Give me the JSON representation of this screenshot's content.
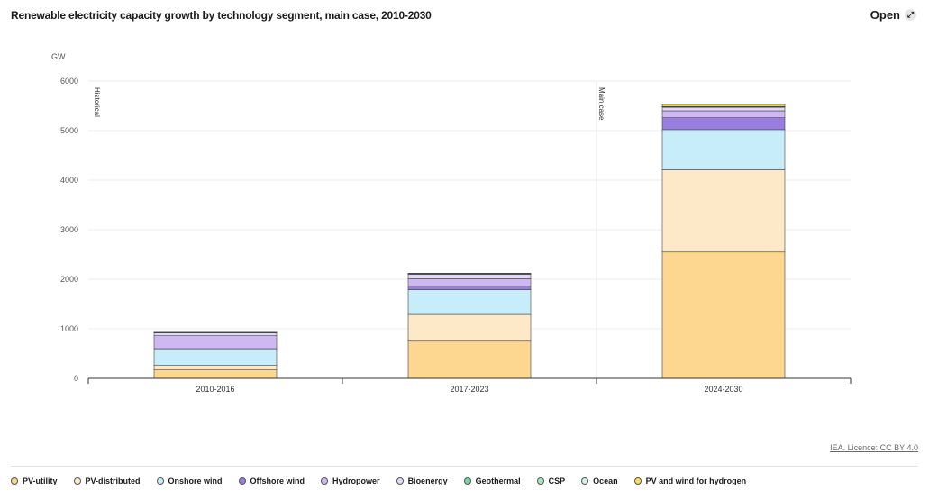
{
  "header": {
    "title": "Renewable electricity capacity growth by technology segment, main case, 2010-2030",
    "open_label": "Open",
    "open_icon": "expand-arrow-icon"
  },
  "source": {
    "label": "IEA. Licence: CC BY 4.0"
  },
  "chart_data": {
    "type": "bar",
    "stacked": true,
    "title": "Renewable electricity capacity growth by technology segment, main case, 2010-2030",
    "ylabel": "GW",
    "xlabel": "",
    "ylim": [
      0,
      6000
    ],
    "yticks": [
      0,
      1000,
      2000,
      3000,
      4000,
      5000,
      6000
    ],
    "categories": [
      "2010-2016",
      "2017-2023",
      "2024-2030"
    ],
    "grid": true,
    "legend_position": "bottom",
    "period_annotations": [
      "Historical",
      "Main case"
    ],
    "series": [
      {
        "name": "PV-utility",
        "color": "#fdd68f",
        "values": [
          170,
          750,
          2550
        ]
      },
      {
        "name": "PV-distributed",
        "color": "#fde8c8",
        "values": [
          90,
          540,
          1660
        ]
      },
      {
        "name": "Onshore wind",
        "color": "#c7ecfa",
        "values": [
          320,
          500,
          810
        ]
      },
      {
        "name": "Offshore wind",
        "color": "#9b7de2",
        "values": [
          20,
          70,
          240
        ]
      },
      {
        "name": "Hydropower",
        "color": "#cdb8f2",
        "values": [
          260,
          150,
          140
        ]
      },
      {
        "name": "Bioenergy",
        "color": "#e0d8f8",
        "values": [
          60,
          90,
          70
        ]
      },
      {
        "name": "Geothermal",
        "color": "#7ad39b",
        "values": [
          5,
          10,
          10
        ]
      },
      {
        "name": "CSP",
        "color": "#a8e6c0",
        "values": [
          3,
          5,
          5
        ]
      },
      {
        "name": "Ocean",
        "color": "#d4f0ec",
        "values": [
          1,
          1,
          2
        ]
      },
      {
        "name": "PV and wind for hydrogen",
        "color": "#f5e04f",
        "values": [
          0,
          5,
          40
        ]
      }
    ]
  }
}
